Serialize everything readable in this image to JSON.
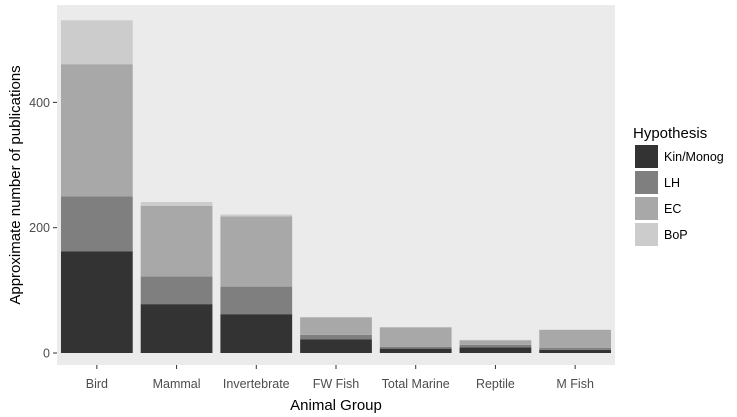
{
  "chart_data": {
    "type": "bar",
    "stacked": true,
    "title": "",
    "xlabel": "Animal Group",
    "ylabel": "Approximate number of publications",
    "categories": [
      "Bird",
      "Mammal",
      "Invertebrate",
      "FW Fish",
      "Total Marine",
      "Reptile",
      "M Fish"
    ],
    "ylim": [
      0,
      530
    ],
    "yticks": [
      0,
      200,
      400
    ],
    "series": [
      {
        "name": "Kin/Monog",
        "color": "#333333",
        "values": [
          162,
          78,
          62,
          22,
          7,
          9,
          5
        ]
      },
      {
        "name": "LH",
        "color": "#7f7f7f",
        "values": [
          88,
          44,
          44,
          7,
          3,
          4,
          3
        ]
      },
      {
        "name": "EC",
        "color": "#a8a8a8",
        "values": [
          211,
          113,
          112,
          28,
          31,
          7,
          29
        ]
      },
      {
        "name": "BoP",
        "color": "#cccccc",
        "values": [
          70,
          6,
          3,
          0,
          0,
          1,
          0
        ]
      }
    ],
    "legend": {
      "title": "Hypothesis",
      "position": "right"
    },
    "grid": false,
    "panel_background": "#ebebeb"
  }
}
